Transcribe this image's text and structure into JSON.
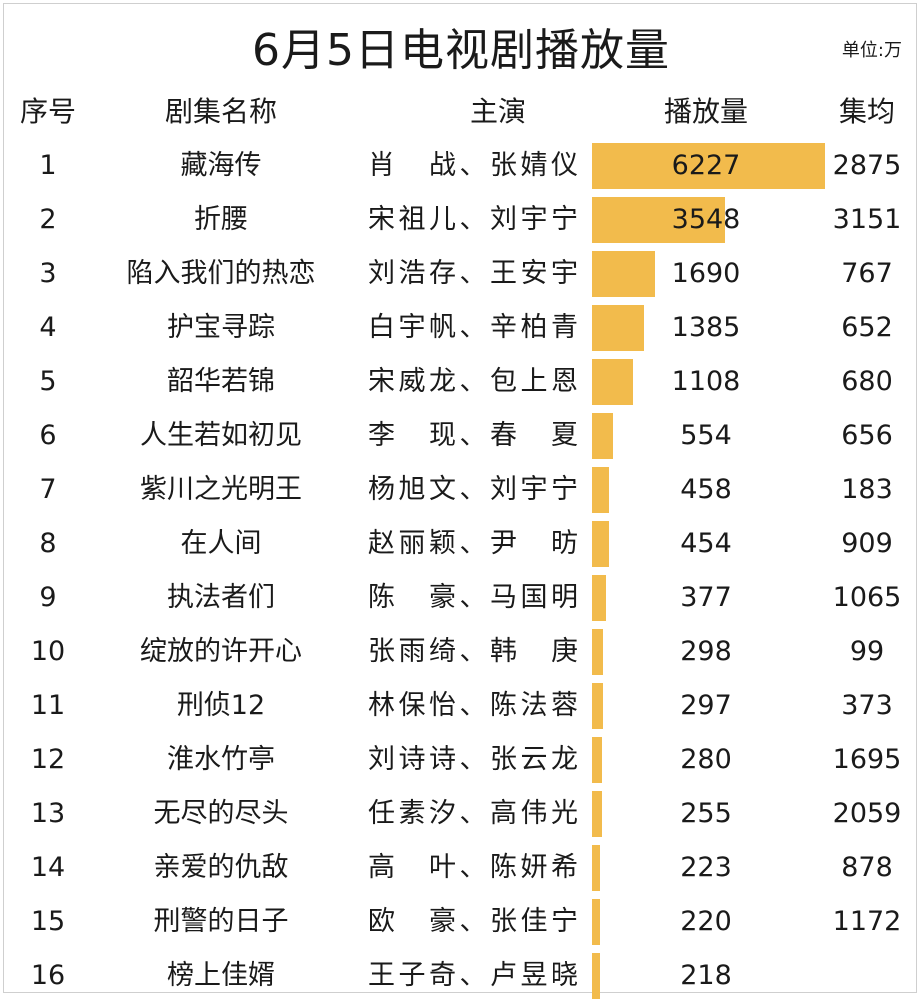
{
  "title": "6月5日电视剧播放量",
  "unit_label": "单位:万",
  "headers": {
    "idx": "序号",
    "name": "剧集名称",
    "cast": "主演",
    "plays": "播放量",
    "avg": "集均"
  },
  "colors": {
    "bar": "#f2bb4c",
    "background": "#ffffff",
    "text": "#1a1a1a"
  },
  "chart_data": {
    "type": "table",
    "title": "6月5日电视剧播放量",
    "unit": "单位:万",
    "columns": [
      "序号",
      "剧集名称",
      "主演",
      "播放量",
      "集均"
    ],
    "bar_column": "播放量",
    "bar_max": 6227,
    "rows": [
      {
        "idx": "1",
        "name": "藏海传",
        "cast": "肖　战、张婧仪",
        "plays": 6227,
        "avg": "2875"
      },
      {
        "idx": "2",
        "name": "折腰",
        "cast": "宋祖儿、刘宇宁",
        "plays": 3548,
        "avg": "3151"
      },
      {
        "idx": "3",
        "name": "陷入我们的热恋",
        "cast": "刘浩存、王安宇",
        "plays": 1690,
        "avg": "767"
      },
      {
        "idx": "4",
        "name": "护宝寻踪",
        "cast": "白宇帆、辛柏青",
        "plays": 1385,
        "avg": "652"
      },
      {
        "idx": "5",
        "name": "韶华若锦",
        "cast": "宋威龙、包上恩",
        "plays": 1108,
        "avg": "680"
      },
      {
        "idx": "6",
        "name": "人生若如初见",
        "cast": "李　现、春　夏",
        "plays": 554,
        "avg": "656"
      },
      {
        "idx": "7",
        "name": "紫川之光明王",
        "cast": "杨旭文、刘宇宁",
        "plays": 458,
        "avg": "183"
      },
      {
        "idx": "8",
        "name": "在人间",
        "cast": "赵丽颖、尹　昉",
        "plays": 454,
        "avg": "909"
      },
      {
        "idx": "9",
        "name": "执法者们",
        "cast": "陈　豪、马国明",
        "plays": 377,
        "avg": "1065"
      },
      {
        "idx": "10",
        "name": "绽放的许开心",
        "cast": "张雨绮、韩　庚",
        "plays": 298,
        "avg": "99"
      },
      {
        "idx": "11",
        "name": "刑侦12",
        "cast": "林保怡、陈法蓉",
        "plays": 297,
        "avg": "373"
      },
      {
        "idx": "12",
        "name": "淮水竹亭",
        "cast": "刘诗诗、张云龙",
        "plays": 280,
        "avg": "1695"
      },
      {
        "idx": "13",
        "name": "无尽的尽头",
        "cast": "任素汐、高伟光",
        "plays": 255,
        "avg": "2059"
      },
      {
        "idx": "14",
        "name": "亲爱的仇敌",
        "cast": "高　叶、陈妍希",
        "plays": 223,
        "avg": "878"
      },
      {
        "idx": "15",
        "name": "刑警的日子",
        "cast": "欧　豪、张佳宁",
        "plays": 220,
        "avg": "1172"
      },
      {
        "idx": "16",
        "name": "榜上佳婿",
        "cast": "王子奇、卢昱晓",
        "plays": 218,
        "avg": ""
      }
    ]
  }
}
